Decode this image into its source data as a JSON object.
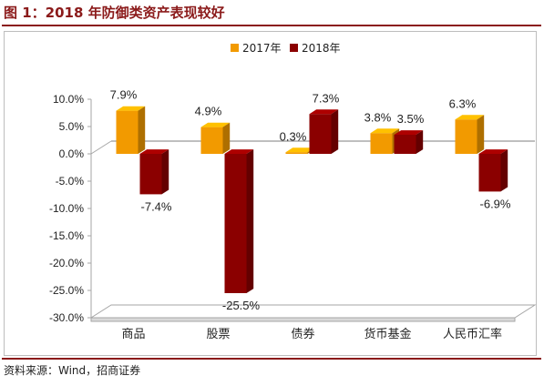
{
  "page": {
    "title": "图 1：2018 年防御类资产表现较好",
    "source": "资料来源：Wind，招商证券"
  },
  "chart_data": {
    "type": "bar",
    "title": "",
    "xlabel": "",
    "ylabel": "",
    "categories": [
      "商品",
      "股票",
      "债券",
      "货币基金",
      "人民币汇率"
    ],
    "series": [
      {
        "name": "2017年",
        "values": [
          7.9,
          4.9,
          0.3,
          3.8,
          6.3
        ],
        "labels": [
          "7.9%",
          "4.9%",
          "0.3%",
          "3.8%",
          "6.3%"
        ]
      },
      {
        "name": "2018年",
        "values": [
          -7.4,
          -25.5,
          7.3,
          3.5,
          -6.9
        ],
        "labels": [
          "-7.4%",
          "-25.5%",
          "7.3%",
          "3.5%",
          "-6.9%"
        ]
      }
    ],
    "ylim": [
      -30,
      10
    ],
    "yticks": [
      10,
      5,
      0,
      -5,
      -10,
      -15,
      -20,
      -25,
      -30
    ],
    "ytick_labels": [
      "10.0%",
      "5.0%",
      "0.0%",
      "-5.0%",
      "-10.0%",
      "-15.0%",
      "-20.0%",
      "-25.0%",
      "-30.0%"
    ],
    "legend_position": "top-center",
    "grid": false,
    "colors": {
      "2017年": "#f29a00",
      "2018年": "#8b0000",
      "frame": "#a6a6a6"
    },
    "style": "3d-bars"
  }
}
